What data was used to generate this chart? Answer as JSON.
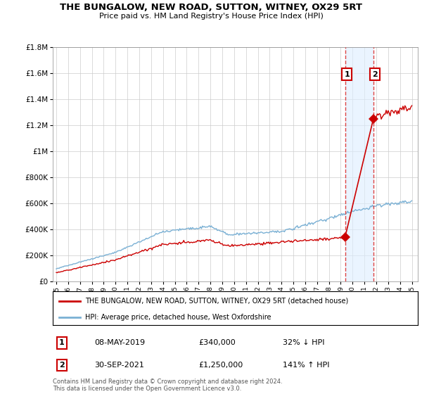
{
  "title": "THE BUNGALOW, NEW ROAD, SUTTON, WITNEY, OX29 5RT",
  "subtitle": "Price paid vs. HM Land Registry's House Price Index (HPI)",
  "legend_label_red": "THE BUNGALOW, NEW ROAD, SUTTON, WITNEY, OX29 5RT (detached house)",
  "legend_label_blue": "HPI: Average price, detached house, West Oxfordshire",
  "footer": "Contains HM Land Registry data © Crown copyright and database right 2024.\nThis data is licensed under the Open Government Licence v3.0.",
  "transaction1_date": "08-MAY-2019",
  "transaction1_price": "£340,000",
  "transaction1_hpi": "32% ↓ HPI",
  "transaction2_date": "30-SEP-2021",
  "transaction2_price": "£1,250,000",
  "transaction2_hpi": "141% ↑ HPI",
  "ylim": [
    0,
    1800000
  ],
  "xlim_left": 1994.7,
  "xlim_right": 2025.5,
  "transaction1_x": 2019.36,
  "transaction1_y": 340000,
  "transaction2_x": 2021.75,
  "transaction2_y": 1250000,
  "red_color": "#cc0000",
  "blue_color": "#7ab0d4",
  "dashed_color": "#dd4444",
  "shade_color": "#ddeeff",
  "background_color": "#ffffff",
  "grid_color": "#cccccc"
}
